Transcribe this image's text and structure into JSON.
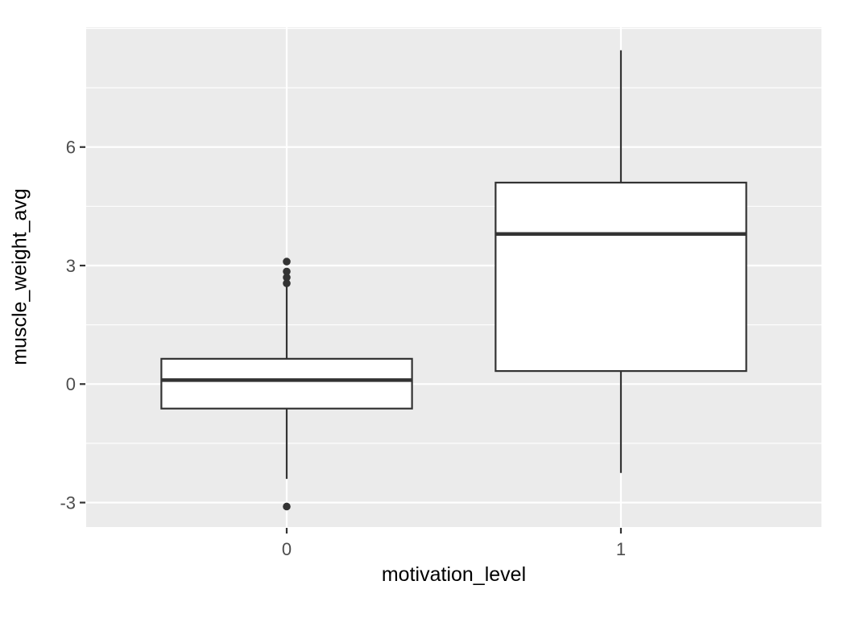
{
  "chart_data": {
    "type": "boxplot",
    "title": "",
    "xlabel": "motivation_level",
    "ylabel": "muscle_weight_avg",
    "categories": [
      "0",
      "1"
    ],
    "series": [
      {
        "name": "0",
        "lower_whisker": -2.4,
        "q1": -0.62,
        "median": 0.1,
        "q3": 0.64,
        "upper_whisker": 2.5,
        "outliers": [
          3.1,
          2.85,
          2.7,
          2.55,
          -3.1
        ]
      },
      {
        "name": "1",
        "lower_whisker": -2.25,
        "q1": 0.33,
        "median": 3.8,
        "q3": 5.1,
        "upper_whisker": 8.45,
        "outliers": []
      }
    ],
    "y_ticks": [
      -3,
      0,
      3,
      6
    ],
    "y_tick_labels": [
      "-3",
      "0",
      "3",
      "6"
    ],
    "y_minor_ticks": [
      -1.5,
      1.5,
      4.5,
      7.5,
      9.0
    ],
    "ylim": [
      -3.62,
      9.03
    ],
    "grid": "major+minor horizontal, major vertical at category centers",
    "legend": "none",
    "colors": {
      "figure_background": "#FFFFFF",
      "panel_background": "#EBEBEB",
      "grid_line": "#FFFFFF",
      "box_fill": "#FFFFFF",
      "box_stroke": "#333333",
      "outlier": "#333333",
      "tick_mark": "#333333",
      "axis_text": "#4D4D4D",
      "axis_title": "#000000"
    }
  }
}
